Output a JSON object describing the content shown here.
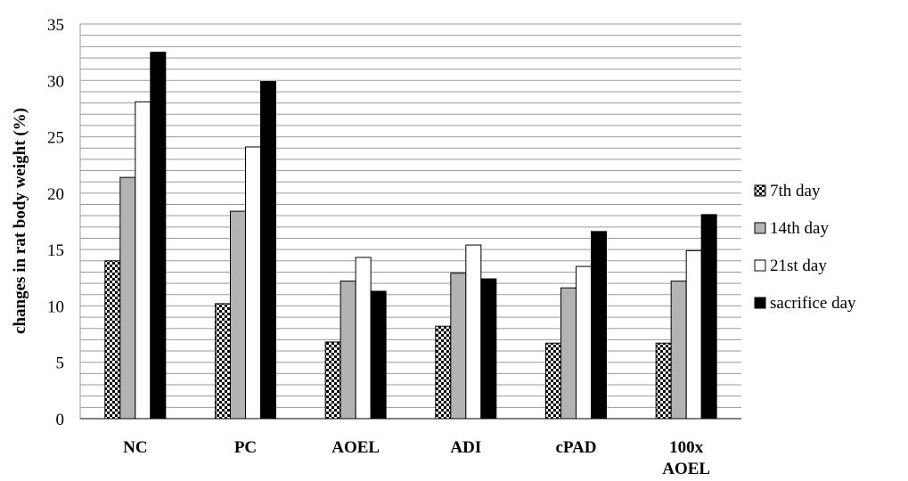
{
  "chart_data": {
    "type": "bar",
    "categories": [
      [
        "NC"
      ],
      [
        "PC"
      ],
      [
        "AOEL"
      ],
      [
        "ADI"
      ],
      [
        "cPAD"
      ],
      [
        "100x",
        "AOEL"
      ]
    ],
    "series": [
      {
        "name": "7th day",
        "values": [
          14.0,
          10.2,
          6.8,
          8.2,
          6.7,
          6.7
        ],
        "fill": "checker"
      },
      {
        "name": "14th day",
        "values": [
          21.4,
          18.4,
          12.2,
          12.9,
          11.6,
          12.2
        ],
        "fill": "#b3b3b3"
      },
      {
        "name": "21st day",
        "values": [
          28.1,
          24.1,
          14.3,
          15.4,
          13.5,
          14.9
        ],
        "fill": "#ffffff"
      },
      {
        "name": "sacrifice day",
        "values": [
          32.5,
          29.9,
          11.3,
          12.4,
          16.6,
          18.1
        ],
        "fill": "#000000"
      }
    ],
    "xlabel": "",
    "ylabel": "changes in rat body weight (%)",
    "ylim": [
      0,
      35
    ],
    "yticks": [
      0,
      5,
      10,
      15,
      20,
      25,
      30,
      35
    ],
    "minor_gridline_step": 1,
    "grid": true,
    "legend_position": "right"
  }
}
